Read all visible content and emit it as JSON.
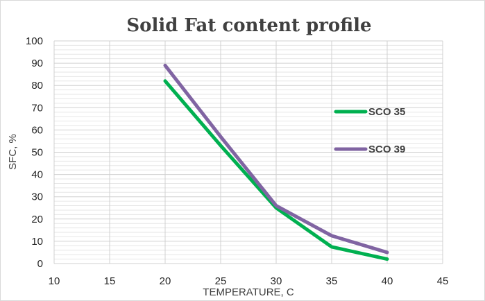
{
  "chart_data": {
    "type": "line",
    "title": "Solid Fat content profile",
    "xlabel": "TEMPERATURE, C",
    "ylabel": "SFC, %",
    "xlim": [
      10,
      45
    ],
    "ylim": [
      0,
      100
    ],
    "x_ticks": [
      10,
      15,
      20,
      25,
      30,
      35,
      40,
      45
    ],
    "y_ticks": [
      0,
      10,
      20,
      30,
      40,
      50,
      60,
      70,
      80,
      90,
      100
    ],
    "grid": true,
    "legend_position": "right",
    "series": [
      {
        "name": "SCO 35",
        "color": "#00b050",
        "x": [
          20,
          25,
          30,
          35,
          40
        ],
        "y": [
          82,
          53,
          25,
          7.5,
          2
        ]
      },
      {
        "name": "SCO 39",
        "color": "#8064a2",
        "x": [
          20,
          25,
          30,
          35,
          40
        ],
        "y": [
          89,
          57,
          26,
          12.5,
          5
        ]
      }
    ]
  }
}
